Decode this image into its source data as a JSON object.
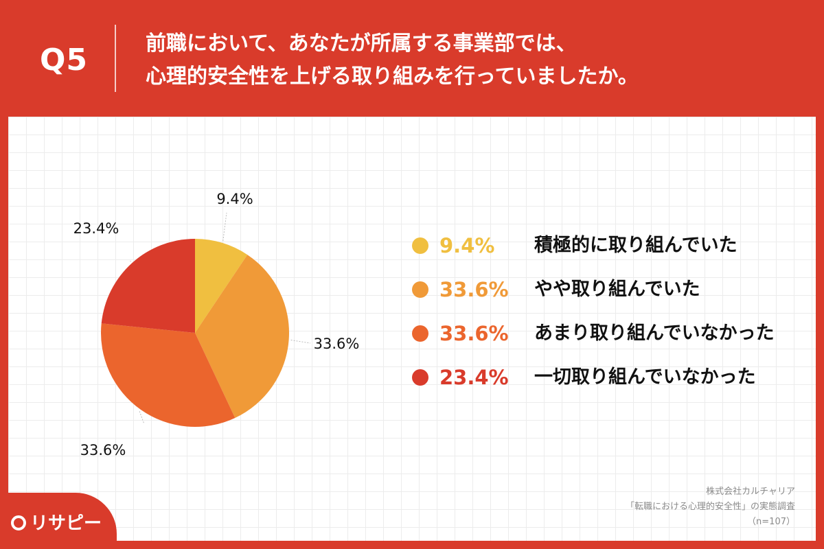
{
  "header": {
    "qnum": "Q5",
    "line1": "前職において、あなたが所属する事業部では、",
    "line2": "心理的安全性を上げる取り組みを行っていましたか。"
  },
  "chart_data": {
    "type": "pie",
    "slices": [
      {
        "label": "積極的に取り組んでいた",
        "value": 9.4,
        "pct_label": "9.4%",
        "color": "#f0bf40"
      },
      {
        "label": "やや取り組んでいた",
        "value": 33.6,
        "pct_label": "33.6%",
        "color": "#f09a38"
      },
      {
        "label": "あまり取り組んでいなかった",
        "value": 33.6,
        "pct_label": "33.6%",
        "color": "#eb652d"
      },
      {
        "label": "一切取り組んでいなかった",
        "value": 23.4,
        "pct_label": "23.4%",
        "color": "#d93b2b"
      }
    ],
    "start_angle": "12 o'clock",
    "direction": "clockwise",
    "legend_position": "right"
  },
  "source": {
    "line1": "株式会社カルチャリア",
    "line2": "「転職における心理的安全性」の実態調査",
    "line3": "（n=107）"
  },
  "logo": {
    "text": "リサピー"
  }
}
